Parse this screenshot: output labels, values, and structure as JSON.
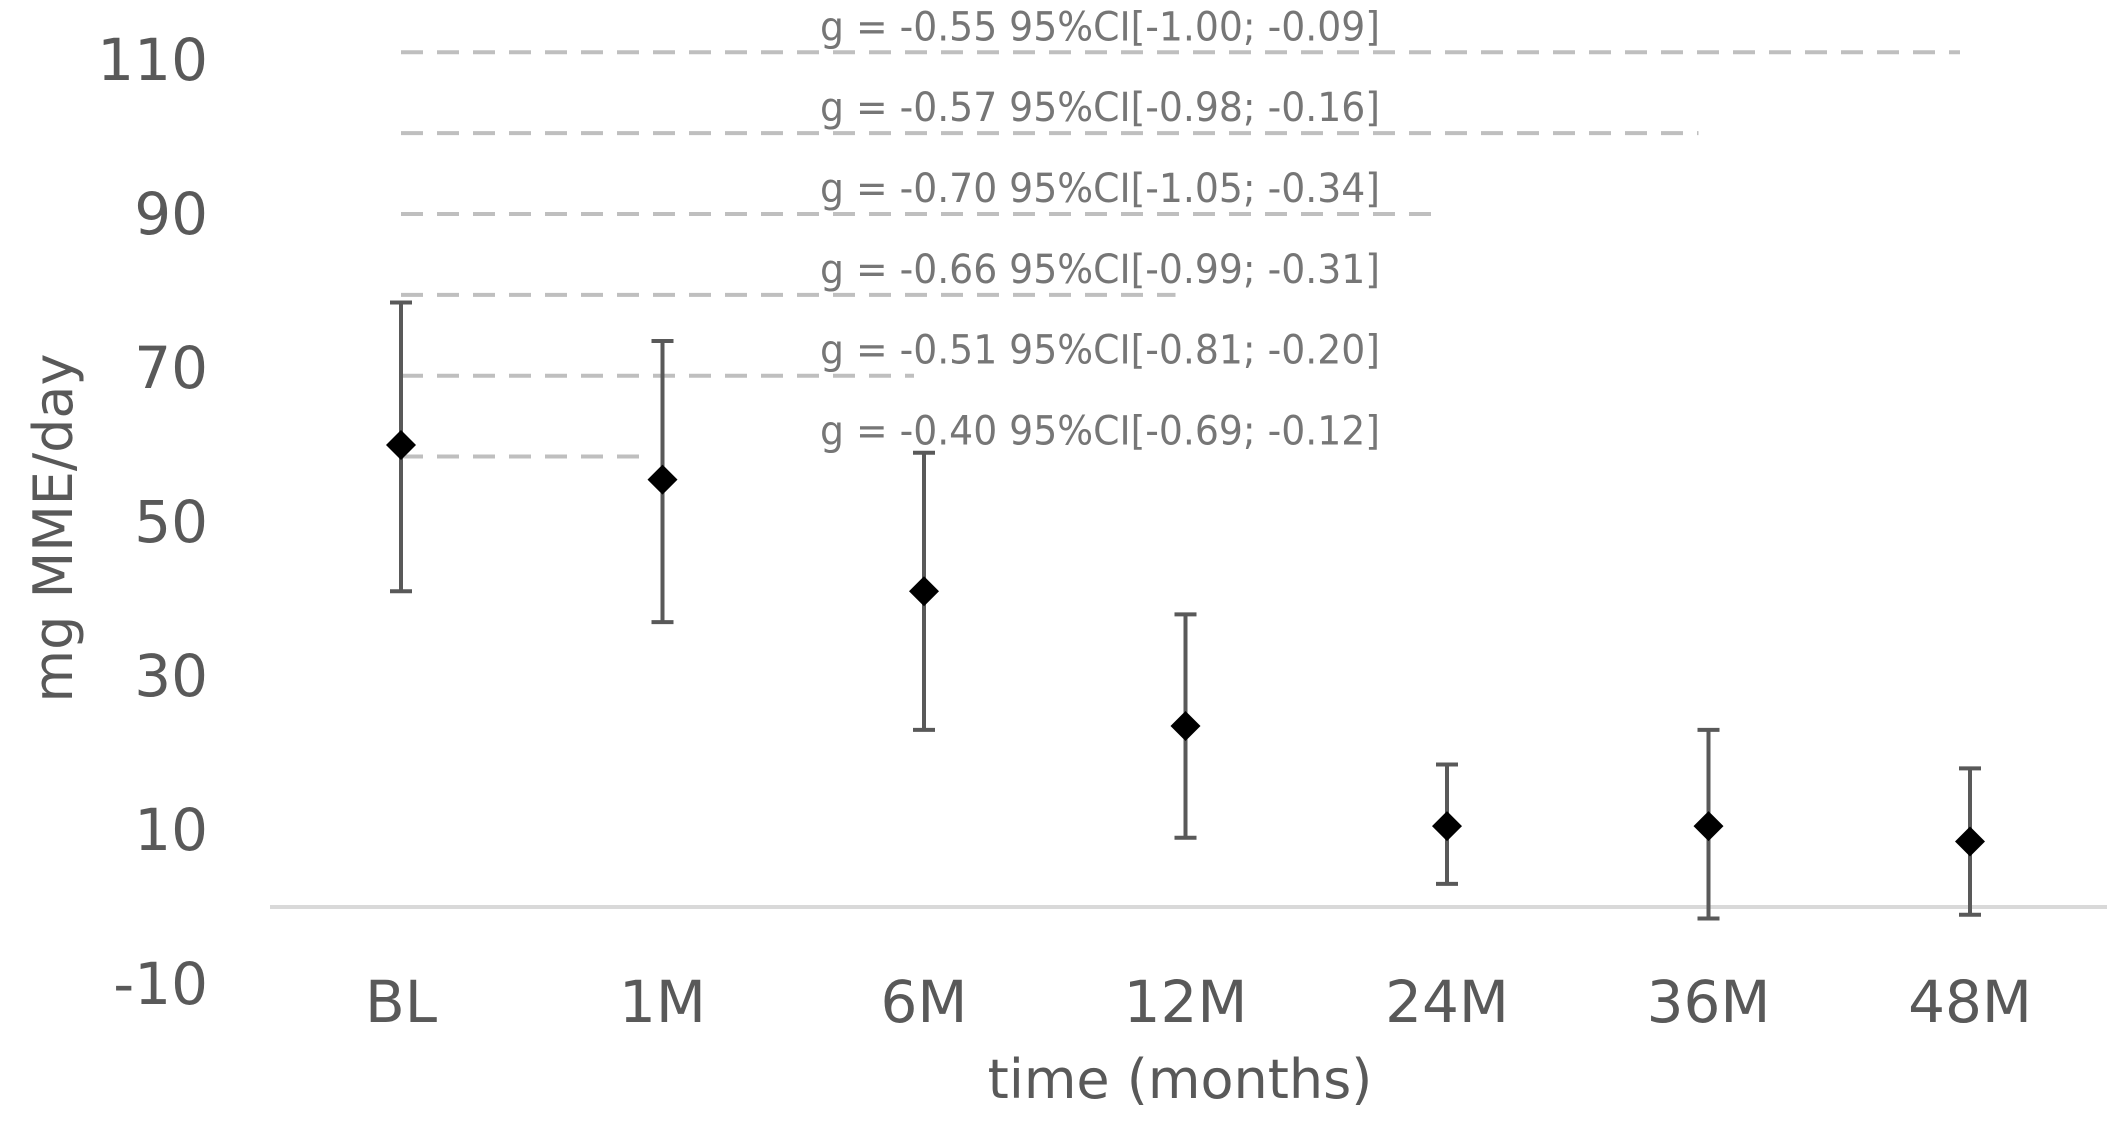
{
  "chart_data": {
    "type": "scatter",
    "title": "",
    "xlabel": "time (months)",
    "ylabel": "mg MME/day",
    "ylim": [
      -10,
      110
    ],
    "yticks": [
      -10,
      10,
      30,
      50,
      70,
      90,
      110
    ],
    "categories": [
      "BL",
      "1M",
      "6M",
      "12M",
      "24M",
      "36M",
      "48M"
    ],
    "series": [
      {
        "values": [
          60,
          55.5,
          41,
          23.5,
          10.5,
          10.5,
          8.5
        ],
        "error_low": [
          41,
          37,
          23,
          9,
          3,
          -1.5,
          -1
        ],
        "error_high": [
          78.5,
          73.5,
          59,
          38,
          18.5,
          23,
          18
        ]
      }
    ],
    "grid": false,
    "legend": "none",
    "marker_color": "#000000",
    "errorbar_color": "#595959",
    "comparisons": [
      {
        "label": "g = -0.40 95%CI[-0.69; -0.12]",
        "from": "BL",
        "to": "1M",
        "level": 58.5
      },
      {
        "label": "g = -0.51 95%CI[-0.81; -0.20]",
        "from": "BL",
        "to": "6M",
        "level": 69
      },
      {
        "label": "g = -0.66 95%CI[-0.99; -0.31]",
        "from": "BL",
        "to": "12M",
        "level": 79.5
      },
      {
        "label": "g = -0.70 95%CI[-1.05; -0.34]",
        "from": "BL",
        "to": "24M",
        "level": 90
      },
      {
        "label": "g = -0.57 95%CI[-0.98; -0.16]",
        "from": "BL",
        "to": "36M",
        "level": 100.5
      },
      {
        "label": "g = -0.55 95%CI[-1.00; -0.09]",
        "from": "BL",
        "to": "48M",
        "level": 111
      }
    ]
  }
}
